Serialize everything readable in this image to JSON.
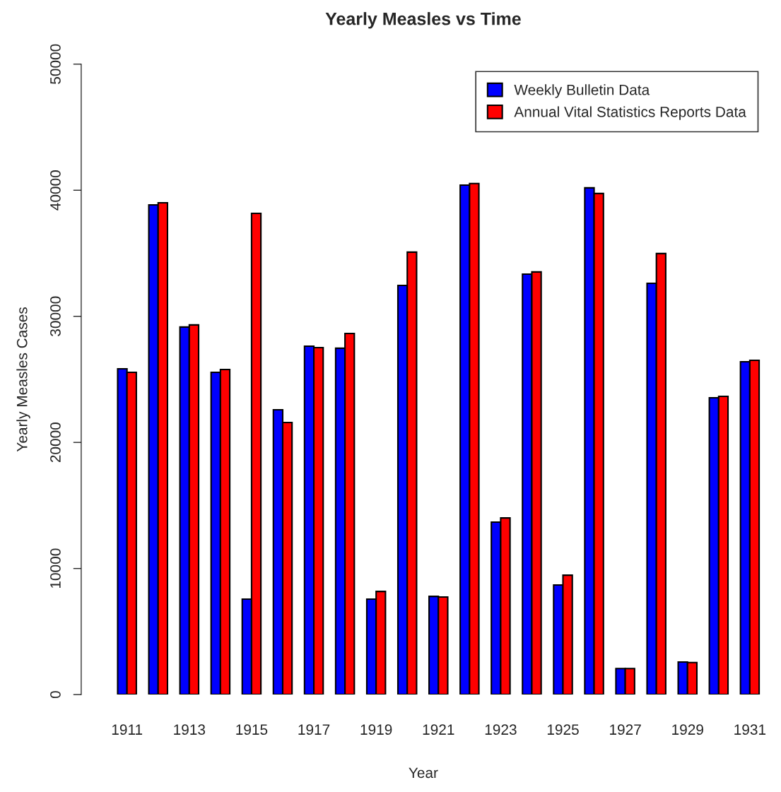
{
  "chart_data": {
    "type": "bar",
    "title": "Yearly Measles vs Time",
    "xlabel": "Year",
    "ylabel": "Yearly Measles Cases",
    "categories": [
      "1911",
      null,
      "1913",
      null,
      "1915",
      null,
      "1917",
      null,
      "1919",
      null,
      "1921",
      null,
      "1923",
      null,
      "1925",
      null,
      "1927",
      null,
      "1929",
      null,
      "1931"
    ],
    "series": [
      {
        "name": "Weekly Bulletin Data",
        "color": "#0000ff",
        "values": [
          25840,
          38840,
          29150,
          25560,
          7570,
          22590,
          27630,
          27470,
          7570,
          32450,
          7790,
          40410,
          13680,
          33350,
          8690,
          40190,
          2070,
          32620,
          2580,
          23540,
          26400
        ]
      },
      {
        "name": "Annual Vital Statistics Reports Data",
        "color": "#ff0000",
        "values": [
          25560,
          39010,
          29320,
          25780,
          38170,
          21580,
          27520,
          28640,
          8180,
          35090,
          7740,
          40530,
          14010,
          33520,
          9470,
          39740,
          2070,
          34980,
          2540,
          23650,
          26510
        ]
      }
    ],
    "ylim": [
      0,
      50000
    ],
    "yticks": [
      0,
      10000,
      20000,
      30000,
      40000,
      50000
    ],
    "grid": false,
    "legend": "top right"
  }
}
